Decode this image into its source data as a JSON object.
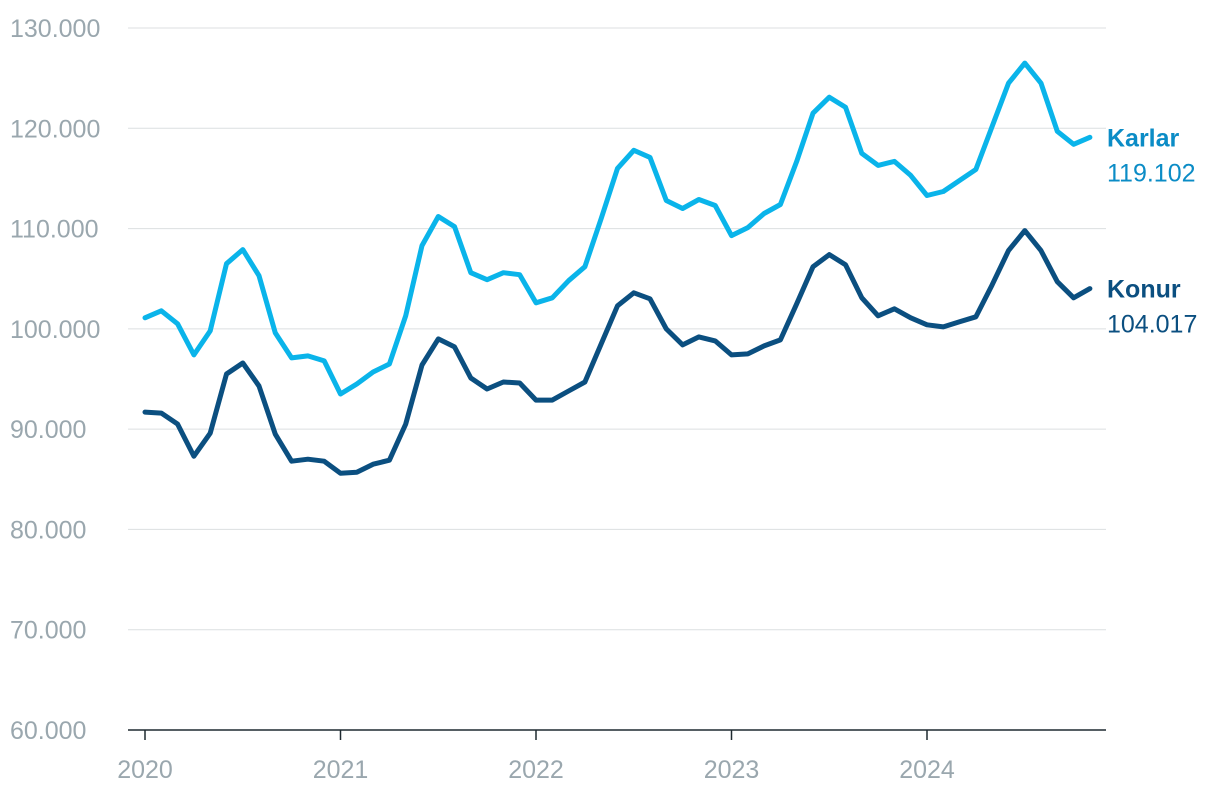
{
  "chart_data": {
    "type": "line",
    "title": "",
    "xlabel": "",
    "ylabel": "",
    "ylim": [
      60000,
      130000
    ],
    "xlim": [
      2020.0,
      2024.92
    ],
    "y_ticks": [
      60000,
      70000,
      80000,
      90000,
      100000,
      110000,
      120000,
      130000
    ],
    "y_tick_labels": [
      "60.000",
      "70.000",
      "80.000",
      "90.000",
      "100.000",
      "110.000",
      "120.000",
      "130.000"
    ],
    "x_ticks": [
      2020,
      2021,
      2022,
      2023,
      2024
    ],
    "x_tick_labels": [
      "2020",
      "2021",
      "2022",
      "2023",
      "2024"
    ],
    "grid": true,
    "legend": "direct-labels-right",
    "series": [
      {
        "name": "Karlar",
        "end_label": "119.102",
        "color": "#0ab4ea",
        "values": [
          101100,
          101800,
          100500,
          97400,
          99800,
          106500,
          107900,
          105300,
          99600,
          97100,
          97300,
          96800,
          93500,
          94500,
          95700,
          96500,
          101300,
          108300,
          111200,
          110200,
          105600,
          104900,
          105600,
          105400,
          102600,
          103100,
          104800,
          106200,
          111000,
          116000,
          117800,
          117100,
          112800,
          112000,
          112900,
          112300,
          109300,
          110100,
          111500,
          112400,
          116700,
          121500,
          123100,
          122100,
          117500,
          116300,
          116700,
          115300,
          113300,
          113700,
          114800,
          115900,
          120200,
          124500,
          126500,
          124500,
          119700,
          118400,
          119102
        ]
      },
      {
        "name": "Konur",
        "end_label": "104.017",
        "color": "#0b4f80",
        "values": [
          91700,
          91600,
          90500,
          87300,
          89600,
          95500,
          96600,
          94300,
          89500,
          86800,
          87000,
          86800,
          85600,
          85700,
          86500,
          86900,
          90500,
          96400,
          99000,
          98200,
          95100,
          94000,
          94700,
          94600,
          92900,
          92900,
          93800,
          94700,
          98500,
          102300,
          103600,
          103000,
          100000,
          98400,
          99200,
          98800,
          97400,
          97500,
          98300,
          98900,
          102500,
          106200,
          107400,
          106400,
          103100,
          101300,
          102000,
          101100,
          100400,
          100200,
          100700,
          101200,
          104400,
          107800,
          109800,
          107800,
          104700,
          103100,
          104017
        ]
      }
    ]
  }
}
